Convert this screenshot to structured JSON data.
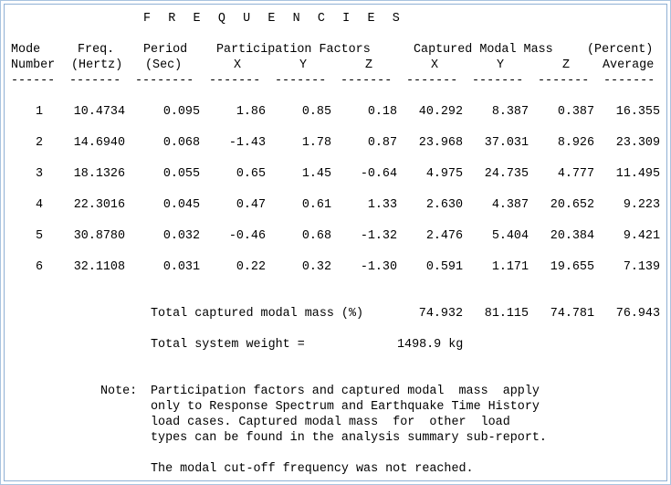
{
  "title": "F R E Q U E N C I E S",
  "headers": {
    "mode1": "Mode",
    "mode2": "Number",
    "freq1": "Freq.",
    "freq2": "(Hertz)",
    "period1": "Period",
    "period2": "(Sec)",
    "participation": "Participation Factors",
    "px": "X",
    "py": "Y",
    "pz": "Z",
    "captured": "Captured Modal Mass",
    "cx": "X",
    "cy": "Y",
    "cz": "Z",
    "percent": "(Percent)",
    "average": "Average"
  },
  "dividers": [
    "------",
    "-------",
    "--------",
    "-------",
    "-------",
    "-------",
    "-------",
    "-------",
    "-------",
    "-------"
  ],
  "rows": [
    {
      "mode": "1",
      "freq": "10.4734",
      "period": "0.095",
      "px": "1.86",
      "py": "0.85",
      "pz": "0.18",
      "cx": "40.292",
      "cy": "8.387",
      "cz": "0.387",
      "avg": "16.355"
    },
    {
      "mode": "2",
      "freq": "14.6940",
      "period": "0.068",
      "px": "-1.43",
      "py": "1.78",
      "pz": "0.87",
      "cx": "23.968",
      "cy": "37.031",
      "cz": "8.926",
      "avg": "23.309"
    },
    {
      "mode": "3",
      "freq": "18.1326",
      "period": "0.055",
      "px": "0.65",
      "py": "1.45",
      "pz": "-0.64",
      "cx": "4.975",
      "cy": "24.735",
      "cz": "4.777",
      "avg": "11.495"
    },
    {
      "mode": "4",
      "freq": "22.3016",
      "period": "0.045",
      "px": "0.47",
      "py": "0.61",
      "pz": "1.33",
      "cx": "2.630",
      "cy": "4.387",
      "cz": "20.652",
      "avg": "9.223"
    },
    {
      "mode": "5",
      "freq": "30.8780",
      "period": "0.032",
      "px": "-0.46",
      "py": "0.68",
      "pz": "-1.32",
      "cx": "2.476",
      "cy": "5.404",
      "cz": "20.384",
      "avg": "9.421"
    },
    {
      "mode": "6",
      "freq": "32.1108",
      "period": "0.031",
      "px": "0.22",
      "py": "0.32",
      "pz": "-1.30",
      "cx": "0.591",
      "cy": "1.171",
      "cz": "19.655",
      "avg": "7.139"
    }
  ],
  "totals": {
    "label": "Total captured modal mass (%)",
    "cx": "74.932",
    "cy": "81.115",
    "cz": "74.781",
    "avg": "76.943"
  },
  "weight": {
    "label": "Total system weight =",
    "value": "1498.9 kg"
  },
  "note": {
    "label": "Note:",
    "lines": [
      "Participation factors and captured modal  mass  apply",
      "only to Response Spectrum and Earthquake Time History",
      "load cases. Captured modal mass  for  other  load",
      "types can be found in the analysis summary sub-report."
    ],
    "cutoff": "The modal cut-off frequency was not reached."
  }
}
